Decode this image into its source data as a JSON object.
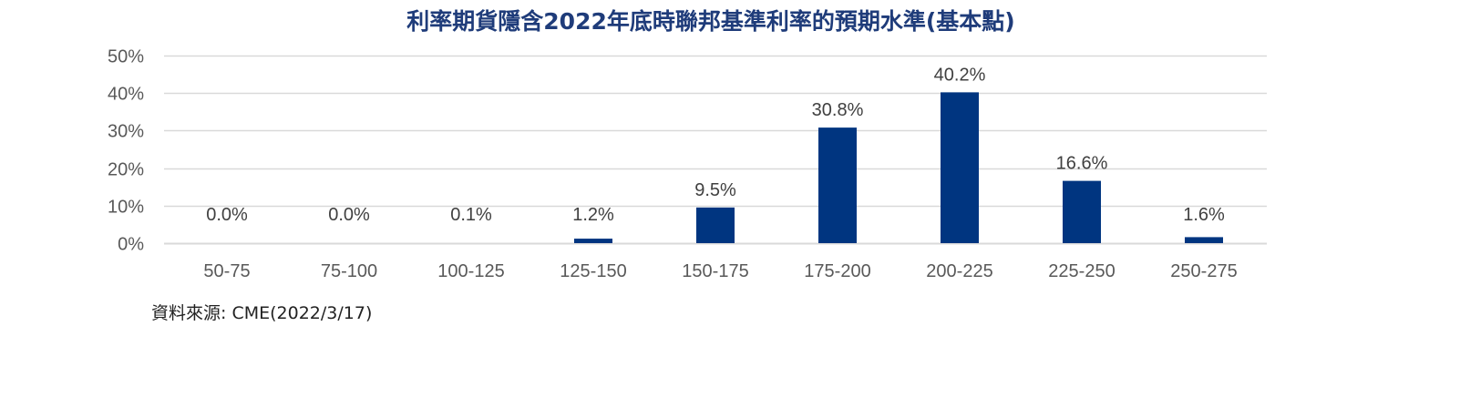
{
  "chart_data": {
    "type": "bar",
    "title": "利率期貨隱含2022年底時聯邦基準利率的預期水準(基本點)",
    "categories": [
      "50-75",
      "75-100",
      "100-125",
      "125-150",
      "150-175",
      "175-200",
      "200-225",
      "225-250",
      "250-275"
    ],
    "values": [
      0.0,
      0.0,
      0.1,
      1.2,
      9.5,
      30.8,
      40.2,
      16.6,
      1.6
    ],
    "value_labels": [
      "0.0%",
      "0.0%",
      "0.1%",
      "1.2%",
      "9.5%",
      "30.8%",
      "40.2%",
      "16.6%",
      "1.6%"
    ],
    "ylim": [
      0,
      50
    ],
    "yticks": [
      0,
      10,
      20,
      30,
      40,
      50
    ],
    "ytick_labels": [
      "0%",
      "10%",
      "20%",
      "30%",
      "40%",
      "50%"
    ],
    "xlabel": "",
    "ylabel": "",
    "grid": true,
    "legend": "none",
    "bar_color": "#003580",
    "grid_color": "#d9d9d9"
  },
  "source": "資料來源: CME(2022/3/17)"
}
